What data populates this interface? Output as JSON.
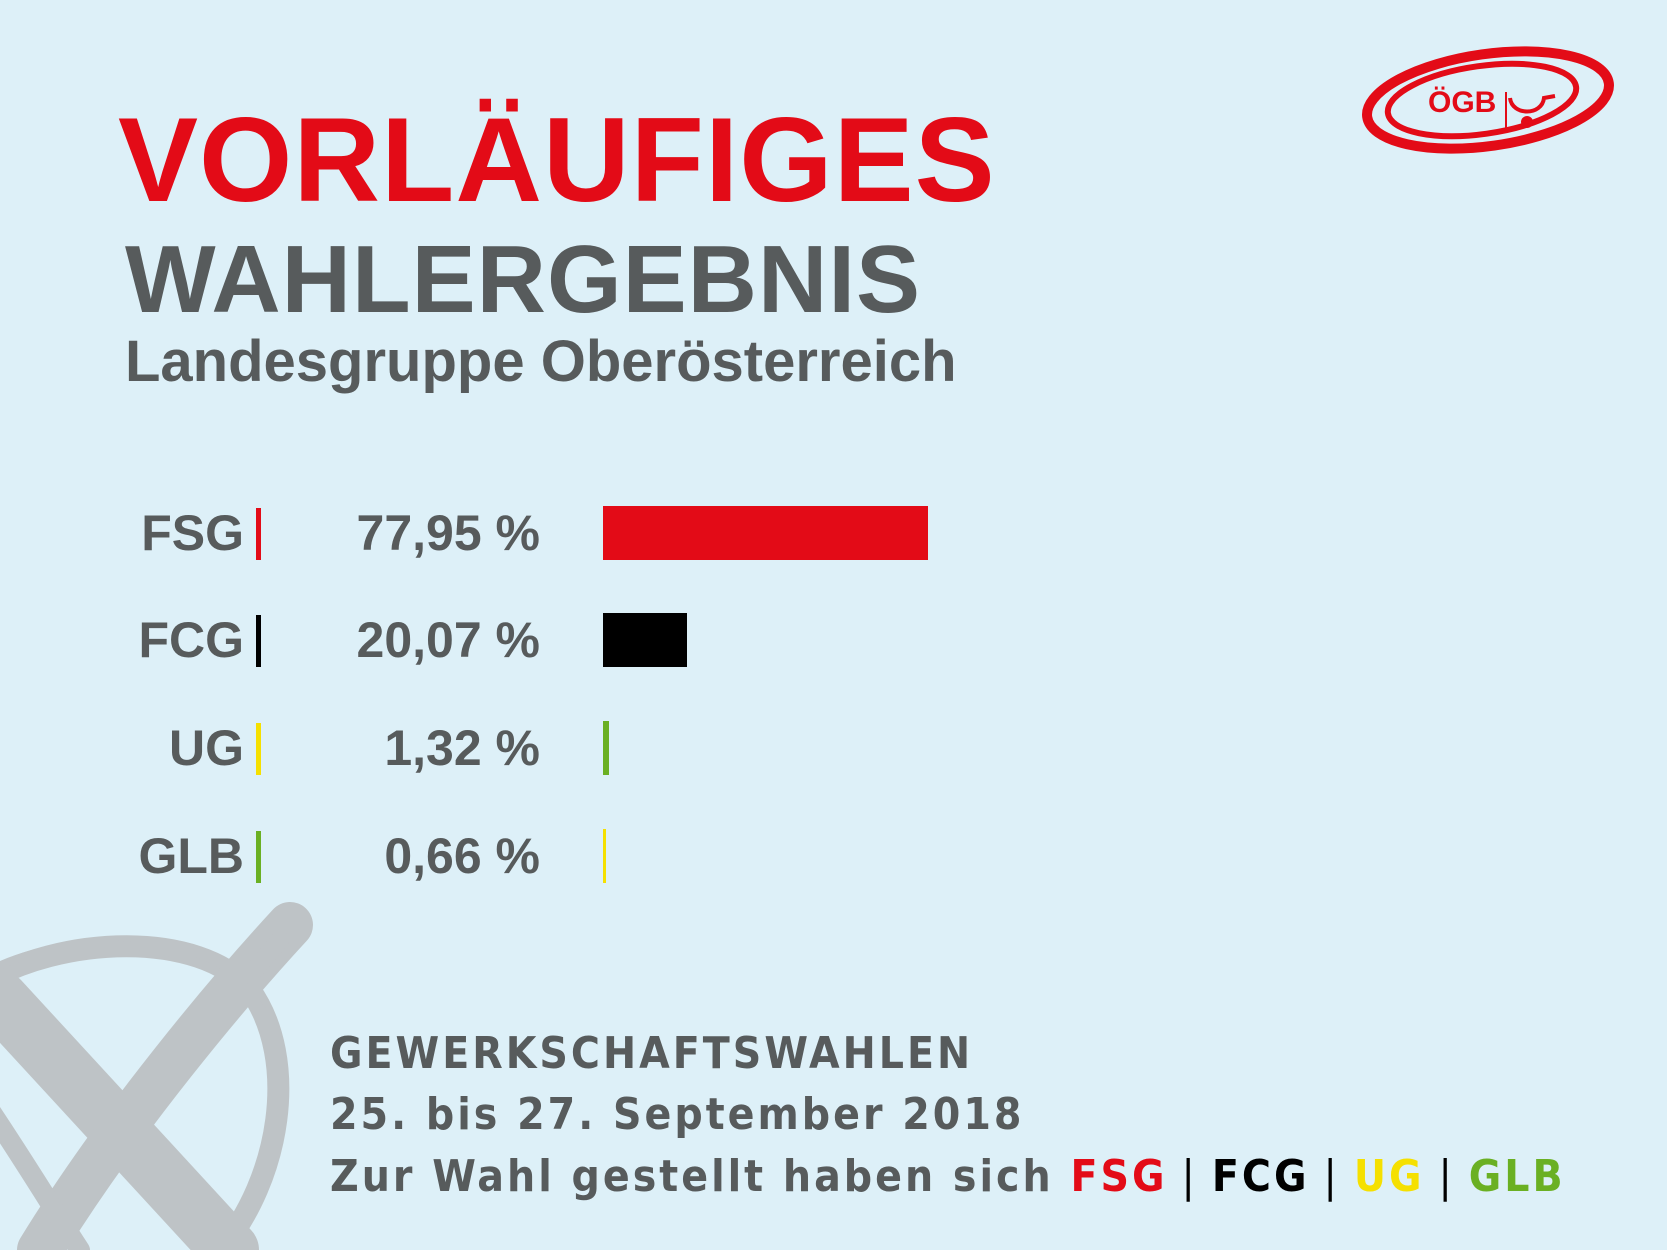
{
  "logo": {
    "text": "ÖGB"
  },
  "title": {
    "line1": "VORLÄUFIGES",
    "line2": "WAHLERGEBNIS",
    "subtitle": "Landesgruppe Oberösterreich"
  },
  "colors": {
    "background": "#ddf0f8",
    "red": "#e30b17",
    "grey": "#575b5c",
    "black": "#000000",
    "yellow": "#f5e000",
    "green": "#6ab023"
  },
  "chart_data": {
    "type": "bar",
    "orientation": "horizontal",
    "categories": [
      "FSG",
      "FCG",
      "UG",
      "GLB"
    ],
    "values": [
      77.95,
      20.07,
      1.32,
      0.66
    ],
    "value_labels": [
      "77,95 %",
      "20,07 %",
      "1,32 %",
      "0,66 %"
    ],
    "separator_colors": [
      "#e30b17",
      "#000000",
      "#f5e000",
      "#6ab023"
    ],
    "bar_colors": [
      "#e30b17",
      "#000000",
      "#6ab023",
      "#f5e000"
    ],
    "title": "",
    "xlabel": "",
    "ylabel": "",
    "xlim": [
      0,
      100
    ],
    "grid": false
  },
  "footer": {
    "line1": "GEWERKSCHAFTSWAHLEN",
    "line2": "25. bis 27. September 2018",
    "line3_prefix": "Zur Wahl gestellt haben sich",
    "parties": [
      "FSG",
      "FCG",
      "UG",
      "GLB"
    ],
    "separator": "|"
  }
}
